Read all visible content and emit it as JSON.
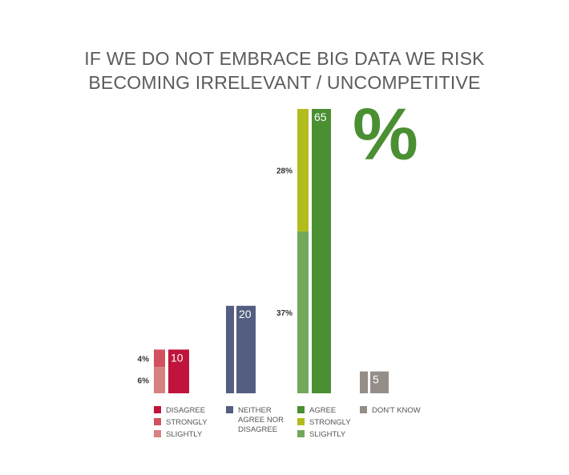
{
  "title_lines": [
    "IF WE DO NOT EMBRACE BIG DATA WE RISK",
    "BECOMING IRRELEVANT / UNCOMPETITIVE"
  ],
  "unit_symbol": "%",
  "chart_data": {
    "type": "bar",
    "title": "IF WE DO NOT EMBRACE BIG DATA WE RISK BECOMING IRRELEVANT / UNCOMPETITIVE",
    "categories": [
      "DISAGREE",
      "NEITHER AGREE NOR DISAGREE",
      "AGREE",
      "DON'T KNOW"
    ],
    "groups": [
      {
        "category": "DISAGREE",
        "total": 10,
        "total_label": "10",
        "total_color": "#c0143c",
        "parts": [
          {
            "name": "SLIGHTLY",
            "value": 6,
            "label": "6%",
            "color": "#d98080"
          },
          {
            "name": "STRONGLY",
            "value": 4,
            "label": "4%",
            "color": "#d3515d"
          }
        ],
        "legend": [
          {
            "label": "DISAGREE",
            "color": "#c0143c"
          },
          {
            "label": "STRONGLY",
            "color": "#d3515d"
          },
          {
            "label": "SLIGHTLY",
            "color": "#d98080"
          }
        ]
      },
      {
        "category": "NEITHER AGREE NOR DISAGREE",
        "total": 20,
        "total_label": "20",
        "total_color": "#545e80",
        "parts": [
          {
            "name": "NEITHER AGREE NOR DISAGREE",
            "value": 20,
            "label": "",
            "color": "#545e80"
          }
        ],
        "legend": [
          {
            "label": "NEITHER AGREE NOR DISAGREE",
            "lines": [
              "NEITHER",
              "AGREE NOR",
              "DISAGREE"
            ],
            "color": "#545e80"
          }
        ]
      },
      {
        "category": "AGREE",
        "total": 65,
        "total_label": "65",
        "total_color": "#4a8f32",
        "parts": [
          {
            "name": "SLIGHTLY",
            "value": 37,
            "label": "37%",
            "color": "#72a85a"
          },
          {
            "name": "STRONGLY",
            "value": 28,
            "label": "28%",
            "color": "#b2bc1c"
          }
        ],
        "legend": [
          {
            "label": "AGREE",
            "color": "#4a8f32"
          },
          {
            "label": "STRONGLY",
            "color": "#b2bc1c"
          },
          {
            "label": "SLIGHTLY",
            "color": "#72a85a"
          }
        ]
      },
      {
        "category": "DON'T KNOW",
        "total": 5,
        "total_label": "5",
        "total_color": "#958e88",
        "parts": [
          {
            "name": "DON'T KNOW",
            "value": 5,
            "label": "",
            "color": "#958e88"
          }
        ],
        "legend": [
          {
            "label": "DON'T KNOW",
            "color": "#958e88"
          }
        ]
      }
    ],
    "ylim": [
      0,
      65
    ],
    "grid": false,
    "legend_position": "bottom"
  }
}
